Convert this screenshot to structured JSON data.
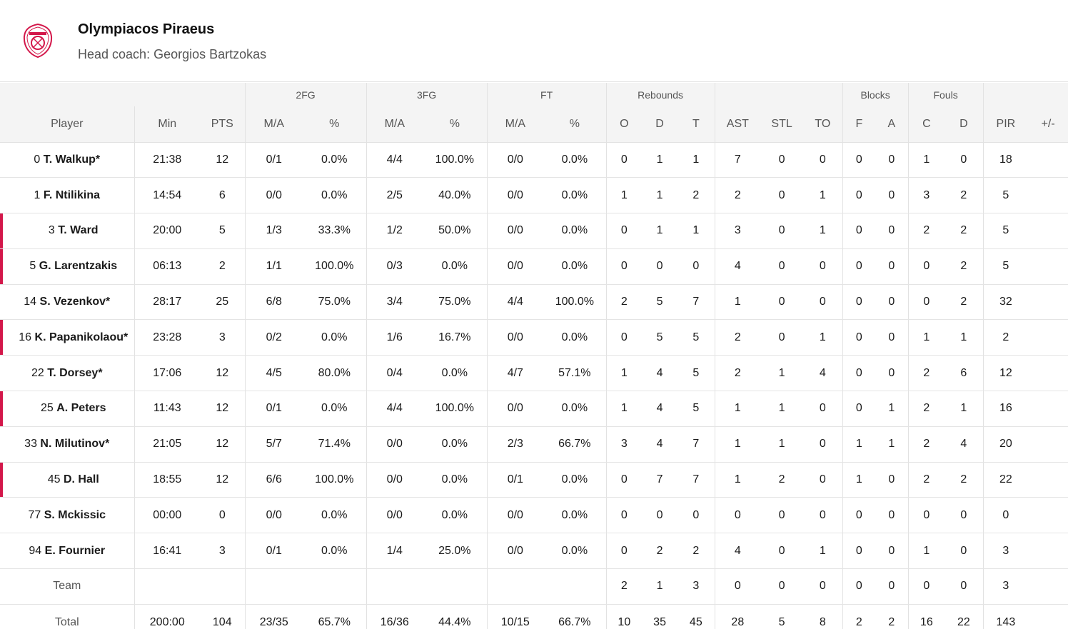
{
  "team": {
    "name": "Olympiacos Piraeus",
    "coach": "Head coach: Georgios Bartzokas",
    "logo_text": "OLYMPIACOS",
    "accent_color": "#d3174a"
  },
  "header": {
    "groups": {
      "fg2": "2FG",
      "fg3": "3FG",
      "ft": "FT",
      "rebounds": "Rebounds",
      "blocks": "Blocks",
      "fouls": "Fouls"
    },
    "columns": {
      "player": "Player",
      "min": "Min",
      "pts": "PTS",
      "fg2_ma": "M/A",
      "fg2_pct": "%",
      "fg3_ma": "M/A",
      "fg3_pct": "%",
      "ft_ma": "M/A",
      "ft_pct": "%",
      "reb_o": "O",
      "reb_d": "D",
      "reb_t": "T",
      "ast": "AST",
      "stl": "STL",
      "to": "TO",
      "blk_f": "F",
      "blk_a": "A",
      "foul_c": "C",
      "foul_d": "D",
      "pir": "PIR",
      "plusminus": "+/-"
    }
  },
  "players": [
    {
      "num": "0",
      "name": "T. Walkup*",
      "sub": false,
      "min": "21:38",
      "pts": "12",
      "fg2_ma": "0/1",
      "fg2_pct": "0.0%",
      "fg3_ma": "4/4",
      "fg3_pct": "100.0%",
      "ft_ma": "0/0",
      "ft_pct": "0.0%",
      "reb_o": "0",
      "reb_d": "1",
      "reb_t": "1",
      "ast": "7",
      "stl": "0",
      "to": "0",
      "blk_f": "0",
      "blk_a": "0",
      "foul_c": "1",
      "foul_d": "0",
      "pir": "18",
      "plusminus": ""
    },
    {
      "num": "1",
      "name": "F. Ntilikina",
      "sub": false,
      "min": "14:54",
      "pts": "6",
      "fg2_ma": "0/0",
      "fg2_pct": "0.0%",
      "fg3_ma": "2/5",
      "fg3_pct": "40.0%",
      "ft_ma": "0/0",
      "ft_pct": "0.0%",
      "reb_o": "1",
      "reb_d": "1",
      "reb_t": "2",
      "ast": "2",
      "stl": "0",
      "to": "1",
      "blk_f": "0",
      "blk_a": "0",
      "foul_c": "3",
      "foul_d": "2",
      "pir": "5",
      "plusminus": ""
    },
    {
      "num": "3",
      "name": "T. Ward",
      "sub": true,
      "min": "20:00",
      "pts": "5",
      "fg2_ma": "1/3",
      "fg2_pct": "33.3%",
      "fg3_ma": "1/2",
      "fg3_pct": "50.0%",
      "ft_ma": "0/0",
      "ft_pct": "0.0%",
      "reb_o": "0",
      "reb_d": "1",
      "reb_t": "1",
      "ast": "3",
      "stl": "0",
      "to": "1",
      "blk_f": "0",
      "blk_a": "0",
      "foul_c": "2",
      "foul_d": "2",
      "pir": "5",
      "plusminus": ""
    },
    {
      "num": "5",
      "name": "G. Larentzakis",
      "sub": true,
      "min": "06:13",
      "pts": "2",
      "fg2_ma": "1/1",
      "fg2_pct": "100.0%",
      "fg3_ma": "0/3",
      "fg3_pct": "0.0%",
      "ft_ma": "0/0",
      "ft_pct": "0.0%",
      "reb_o": "0",
      "reb_d": "0",
      "reb_t": "0",
      "ast": "4",
      "stl": "0",
      "to": "0",
      "blk_f": "0",
      "blk_a": "0",
      "foul_c": "0",
      "foul_d": "2",
      "pir": "5",
      "plusminus": ""
    },
    {
      "num": "14",
      "name": "S. Vezenkov*",
      "sub": false,
      "min": "28:17",
      "pts": "25",
      "fg2_ma": "6/8",
      "fg2_pct": "75.0%",
      "fg3_ma": "3/4",
      "fg3_pct": "75.0%",
      "ft_ma": "4/4",
      "ft_pct": "100.0%",
      "reb_o": "2",
      "reb_d": "5",
      "reb_t": "7",
      "ast": "1",
      "stl": "0",
      "to": "0",
      "blk_f": "0",
      "blk_a": "0",
      "foul_c": "0",
      "foul_d": "2",
      "pir": "32",
      "plusminus": ""
    },
    {
      "num": "16",
      "name": "K. Papanikolaou*",
      "sub": true,
      "min": "23:28",
      "pts": "3",
      "fg2_ma": "0/2",
      "fg2_pct": "0.0%",
      "fg3_ma": "1/6",
      "fg3_pct": "16.7%",
      "ft_ma": "0/0",
      "ft_pct": "0.0%",
      "reb_o": "0",
      "reb_d": "5",
      "reb_t": "5",
      "ast": "2",
      "stl": "0",
      "to": "1",
      "blk_f": "0",
      "blk_a": "0",
      "foul_c": "1",
      "foul_d": "1",
      "pir": "2",
      "plusminus": ""
    },
    {
      "num": "22",
      "name": "T. Dorsey*",
      "sub": false,
      "min": "17:06",
      "pts": "12",
      "fg2_ma": "4/5",
      "fg2_pct": "80.0%",
      "fg3_ma": "0/4",
      "fg3_pct": "0.0%",
      "ft_ma": "4/7",
      "ft_pct": "57.1%",
      "reb_o": "1",
      "reb_d": "4",
      "reb_t": "5",
      "ast": "2",
      "stl": "1",
      "to": "4",
      "blk_f": "0",
      "blk_a": "0",
      "foul_c": "2",
      "foul_d": "6",
      "pir": "12",
      "plusminus": ""
    },
    {
      "num": "25",
      "name": "A. Peters",
      "sub": true,
      "min": "11:43",
      "pts": "12",
      "fg2_ma": "0/1",
      "fg2_pct": "0.0%",
      "fg3_ma": "4/4",
      "fg3_pct": "100.0%",
      "ft_ma": "0/0",
      "ft_pct": "0.0%",
      "reb_o": "1",
      "reb_d": "4",
      "reb_t": "5",
      "ast": "1",
      "stl": "1",
      "to": "0",
      "blk_f": "0",
      "blk_a": "1",
      "foul_c": "2",
      "foul_d": "1",
      "pir": "16",
      "plusminus": ""
    },
    {
      "num": "33",
      "name": "N. Milutinov*",
      "sub": false,
      "min": "21:05",
      "pts": "12",
      "fg2_ma": "5/7",
      "fg2_pct": "71.4%",
      "fg3_ma": "0/0",
      "fg3_pct": "0.0%",
      "ft_ma": "2/3",
      "ft_pct": "66.7%",
      "reb_o": "3",
      "reb_d": "4",
      "reb_t": "7",
      "ast": "1",
      "stl": "1",
      "to": "0",
      "blk_f": "1",
      "blk_a": "1",
      "foul_c": "2",
      "foul_d": "4",
      "pir": "20",
      "plusminus": ""
    },
    {
      "num": "45",
      "name": "D. Hall",
      "sub": true,
      "min": "18:55",
      "pts": "12",
      "fg2_ma": "6/6",
      "fg2_pct": "100.0%",
      "fg3_ma": "0/0",
      "fg3_pct": "0.0%",
      "ft_ma": "0/1",
      "ft_pct": "0.0%",
      "reb_o": "0",
      "reb_d": "7",
      "reb_t": "7",
      "ast": "1",
      "stl": "2",
      "to": "0",
      "blk_f": "1",
      "blk_a": "0",
      "foul_c": "2",
      "foul_d": "2",
      "pir": "22",
      "plusminus": ""
    },
    {
      "num": "77",
      "name": "S. Mckissic",
      "sub": false,
      "min": "00:00",
      "pts": "0",
      "fg2_ma": "0/0",
      "fg2_pct": "0.0%",
      "fg3_ma": "0/0",
      "fg3_pct": "0.0%",
      "ft_ma": "0/0",
      "ft_pct": "0.0%",
      "reb_o": "0",
      "reb_d": "0",
      "reb_t": "0",
      "ast": "0",
      "stl": "0",
      "to": "0",
      "blk_f": "0",
      "blk_a": "0",
      "foul_c": "0",
      "foul_d": "0",
      "pir": "0",
      "plusminus": ""
    },
    {
      "num": "94",
      "name": "E. Fournier",
      "sub": false,
      "min": "16:41",
      "pts": "3",
      "fg2_ma": "0/1",
      "fg2_pct": "0.0%",
      "fg3_ma": "1/4",
      "fg3_pct": "25.0%",
      "ft_ma": "0/0",
      "ft_pct": "0.0%",
      "reb_o": "0",
      "reb_d": "2",
      "reb_t": "2",
      "ast": "4",
      "stl": "0",
      "to": "1",
      "blk_f": "0",
      "blk_a": "0",
      "foul_c": "1",
      "foul_d": "0",
      "pir": "3",
      "plusminus": ""
    }
  ],
  "team_row": {
    "label": "Team",
    "min": "",
    "pts": "",
    "fg2_ma": "",
    "fg2_pct": "",
    "fg3_ma": "",
    "fg3_pct": "",
    "ft_ma": "",
    "ft_pct": "",
    "reb_o": "2",
    "reb_d": "1",
    "reb_t": "3",
    "ast": "0",
    "stl": "0",
    "to": "0",
    "blk_f": "0",
    "blk_a": "0",
    "foul_c": "0",
    "foul_d": "0",
    "pir": "3",
    "plusminus": ""
  },
  "total_row": {
    "label": "Total",
    "min": "200:00",
    "pts": "104",
    "fg2_ma": "23/35",
    "fg2_pct": "65.7%",
    "fg3_ma": "16/36",
    "fg3_pct": "44.4%",
    "ft_ma": "10/15",
    "ft_pct": "66.7%",
    "reb_o": "10",
    "reb_d": "35",
    "reb_t": "45",
    "ast": "28",
    "stl": "5",
    "to": "8",
    "blk_f": "2",
    "blk_a": "2",
    "foul_c": "16",
    "foul_d": "22",
    "pir": "143",
    "plusminus": ""
  }
}
